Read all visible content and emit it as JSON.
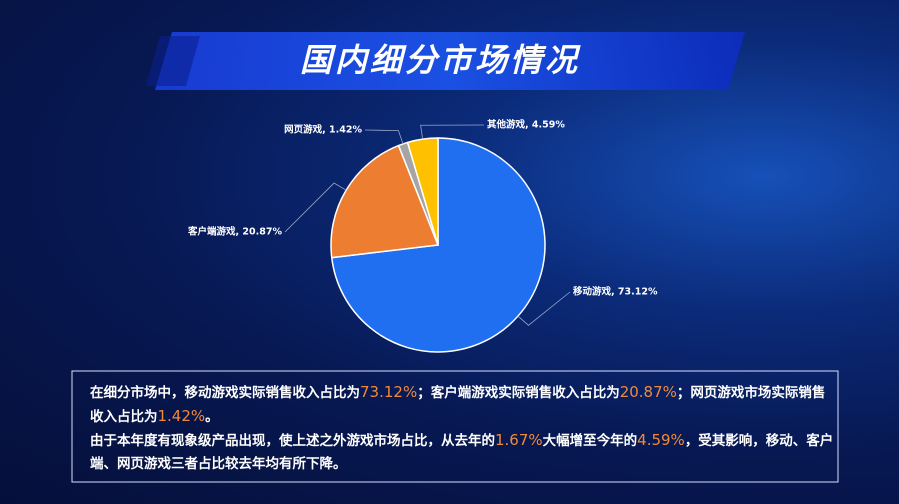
{
  "title": "国内细分市场情况",
  "chart_data": {
    "type": "pie",
    "values": [
      73.12,
      20.87,
      1.42,
      4.59
    ],
    "value_labels": [
      "移动游戏, 73.12%",
      "客户端游戏, 20.87%",
      "网页游戏, 1.42%",
      "其他游戏, 4.59%"
    ],
    "colors": [
      "#1f6ff0",
      "#ed7d31",
      "#a5a5a5",
      "#ffc000"
    ]
  },
  "text": {
    "paragraphs": [
      [
        {
          "text": "在细分市场中，移动游戏实际销售收入占比为"
        },
        {
          "text": "73.12%",
          "highlight": true
        },
        {
          "text": "；客户端游戏实际销售收入占比为"
        },
        {
          "text": "20.87%",
          "highlight": true
        },
        {
          "text": "；网页游戏市场实际销售收入占比为"
        },
        {
          "text": "1.42%",
          "highlight": true
        },
        {
          "text": "。"
        }
      ],
      [
        {
          "text": "由于本年度有现象级产品出现，使上述之外游戏市场占比，从去年的"
        },
        {
          "text": "1.67%",
          "highlight": true
        },
        {
          "text": "大幅增至今年的"
        },
        {
          "text": "4.59%",
          "highlight": true
        },
        {
          "text": "，受其影响，移动、客户端、网页游戏三者占比较去年均有所下降。"
        }
      ]
    ]
  }
}
